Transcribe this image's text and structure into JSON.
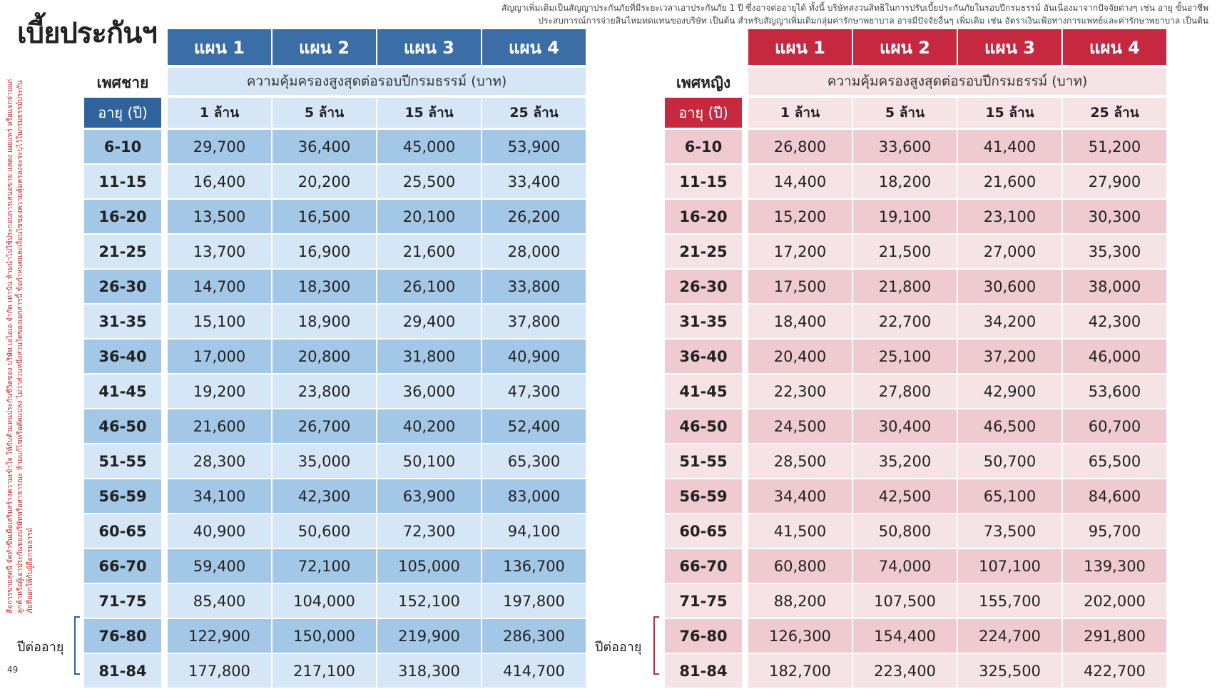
{
  "page": {
    "title": "เบี้ยประกันฯ",
    "disclaimer_line1": "สัญญาเพิ่มเติมเป็นสัญญาประกันภัยที่มีระยะเวลาเอาประกันภัย 1 ปี ซึ่งอาจต่ออายุได้ ทั้งนี้ บริษัทสงวนสิทธิในการปรับเบี้ยประกันภัยในรอบปีกรมธรรม์ อันเนื่องมาจากปัจจัยต่างๆ เช่น อายุ ขั้นอาชีพ",
    "disclaimer_line2": "ประสบการณ์การจ่ายสินไหมทดแทนของบริษัท เป็นต้น สำหรับสัญญาเพิ่มเติมกลุ่มค่ารักษาพยาบาล อาจมีปัจจัยอื่นๆ เพิ่มเติม เช่น อัตราเงินเฟ้อทางการแพทย์และค่ารักษาพยาบาล เป็นต้น",
    "side_note": "สื่อการขายสุดนี้ จัดทำขึ้นเพื่อเสริมสร้างความเข้าใจ ให้กับตัวแทนประกันชีวิตของ บริษัท เอไอเอ จำกัด เท่านั้น ห้ามนำไปใช้ประกอบการเสนอขาย แสดง เผยแพร่ หรือแจกจ่ายแก่ลูกค้าหรือผู้เอาประกันของบริษัทหรือสาธารณะ ห้ามแก้ไขหรือดัดแปลง ไม่ว่าส่วนหนึ่งส่วนใดของเอกสารนี้ ข้อกำหนดและเงื่อนไขของความคุ้มครองจะระบุไว้ในกรมธรรม์ประกันภัยที่ออกให้กับผู้ถือกรมธรรม์",
    "page_number": "49",
    "age_bracket_label": "ปีต่ออายุ"
  },
  "colors": {
    "male_accent": "#3b6ea7",
    "male_light": "#d5e7f6",
    "male_mid": "#a3c8e7",
    "female_accent": "#c6283f",
    "female_light": "#f6e3e6",
    "female_mid": "#efcbd1"
  },
  "male": {
    "gender_label": "เพศชาย",
    "plans": [
      "แผน 1",
      "แผน 2",
      "แผน 3",
      "แผน 4"
    ],
    "coverage_header": "ความคุ้มครองสูงสุดต่อรอบปีกรมธรรม์ (บาท)",
    "age_header": "อายุ (ปี)",
    "coverage_amounts": [
      "1 ล้าน",
      "5 ล้าน",
      "15 ล้าน",
      "25 ล้าน"
    ],
    "rows": [
      {
        "age": "6-10",
        "values": [
          "29,700",
          "36,400",
          "45,000",
          "53,900"
        ]
      },
      {
        "age": "11-15",
        "values": [
          "16,400",
          "20,200",
          "25,500",
          "33,400"
        ]
      },
      {
        "age": "16-20",
        "values": [
          "13,500",
          "16,500",
          "20,100",
          "26,200"
        ]
      },
      {
        "age": "21-25",
        "values": [
          "13,700",
          "16,900",
          "21,600",
          "28,000"
        ]
      },
      {
        "age": "26-30",
        "values": [
          "14,700",
          "18,300",
          "26,100",
          "33,800"
        ]
      },
      {
        "age": "31-35",
        "values": [
          "15,100",
          "18,900",
          "29,400",
          "37,800"
        ]
      },
      {
        "age": "36-40",
        "values": [
          "17,000",
          "20,800",
          "31,800",
          "40,900"
        ]
      },
      {
        "age": "41-45",
        "values": [
          "19,200",
          "23,800",
          "36,000",
          "47,300"
        ]
      },
      {
        "age": "46-50",
        "values": [
          "21,600",
          "26,700",
          "40,200",
          "52,400"
        ]
      },
      {
        "age": "51-55",
        "values": [
          "28,300",
          "35,000",
          "50,100",
          "65,300"
        ]
      },
      {
        "age": "56-59",
        "values": [
          "34,100",
          "42,300",
          "63,900",
          "83,000"
        ]
      },
      {
        "age": "60-65",
        "values": [
          "40,900",
          "50,600",
          "72,300",
          "94,100"
        ]
      },
      {
        "age": "66-70",
        "values": [
          "59,400",
          "72,100",
          "105,000",
          "136,700"
        ]
      },
      {
        "age": "71-75",
        "values": [
          "85,400",
          "104,000",
          "152,100",
          "197,800"
        ]
      },
      {
        "age": "76-80",
        "values": [
          "122,900",
          "150,000",
          "219,900",
          "286,300"
        ]
      },
      {
        "age": "81-84",
        "values": [
          "177,800",
          "217,100",
          "318,300",
          "414,700"
        ]
      }
    ]
  },
  "female": {
    "gender_label": "เพศหญิง",
    "plans": [
      "แผน 1",
      "แผน 2",
      "แผน 3",
      "แผน 4"
    ],
    "coverage_header": "ความคุ้มครองสูงสุดต่อรอบปีกรมธรรม์ (บาท)",
    "age_header": "อายุ (ปี)",
    "coverage_amounts": [
      "1 ล้าน",
      "5 ล้าน",
      "15 ล้าน",
      "25 ล้าน"
    ],
    "rows": [
      {
        "age": "6-10",
        "values": [
          "26,800",
          "33,600",
          "41,400",
          "51,200"
        ]
      },
      {
        "age": "11-15",
        "values": [
          "14,400",
          "18,200",
          "21,600",
          "27,900"
        ]
      },
      {
        "age": "16-20",
        "values": [
          "15,200",
          "19,100",
          "23,100",
          "30,300"
        ]
      },
      {
        "age": "21-25",
        "values": [
          "17,200",
          "21,500",
          "27,000",
          "35,300"
        ]
      },
      {
        "age": "26-30",
        "values": [
          "17,500",
          "21,800",
          "30,600",
          "38,000"
        ]
      },
      {
        "age": "31-35",
        "values": [
          "18,400",
          "22,700",
          "34,200",
          "42,300"
        ]
      },
      {
        "age": "36-40",
        "values": [
          "20,400",
          "25,100",
          "37,200",
          "46,000"
        ]
      },
      {
        "age": "41-45",
        "values": [
          "22,300",
          "27,800",
          "42,900",
          "53,600"
        ]
      },
      {
        "age": "46-50",
        "values": [
          "24,500",
          "30,400",
          "46,500",
          "60,700"
        ]
      },
      {
        "age": "51-55",
        "values": [
          "28,500",
          "35,200",
          "50,700",
          "65,500"
        ]
      },
      {
        "age": "56-59",
        "values": [
          "34,400",
          "42,500",
          "65,100",
          "84,600"
        ]
      },
      {
        "age": "60-65",
        "values": [
          "41,500",
          "50,800",
          "73,500",
          "95,700"
        ]
      },
      {
        "age": "66-70",
        "values": [
          "60,800",
          "74,000",
          "107,100",
          "139,300"
        ]
      },
      {
        "age": "71-75",
        "values": [
          "88,200",
          "107,500",
          "155,700",
          "202,000"
        ]
      },
      {
        "age": "76-80",
        "values": [
          "126,300",
          "154,400",
          "224,700",
          "291,800"
        ]
      },
      {
        "age": "81-84",
        "values": [
          "182,700",
          "223,400",
          "325,500",
          "422,700"
        ]
      }
    ]
  }
}
